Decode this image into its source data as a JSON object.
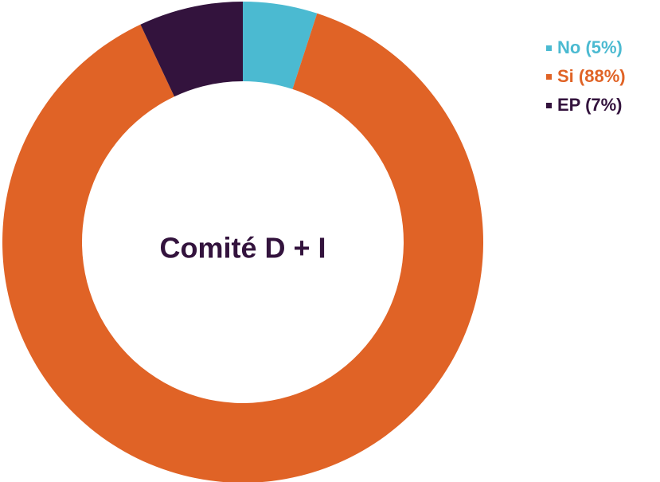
{
  "chart_data": {
    "type": "pie",
    "center_label": "Comité D + I",
    "categories": [
      "No",
      "Si",
      "EP"
    ],
    "values": [
      5,
      88,
      7
    ],
    "value_labels": [
      "5%",
      "88%",
      "7%"
    ],
    "colors": [
      "#4bbad1",
      "#e06326",
      "#33133d"
    ],
    "legend": {
      "placement": "top-right",
      "entries": [
        "No (5%)",
        "Si (88%)",
        "EP (7%)"
      ]
    }
  },
  "colors": {
    "title": "#33133d"
  }
}
